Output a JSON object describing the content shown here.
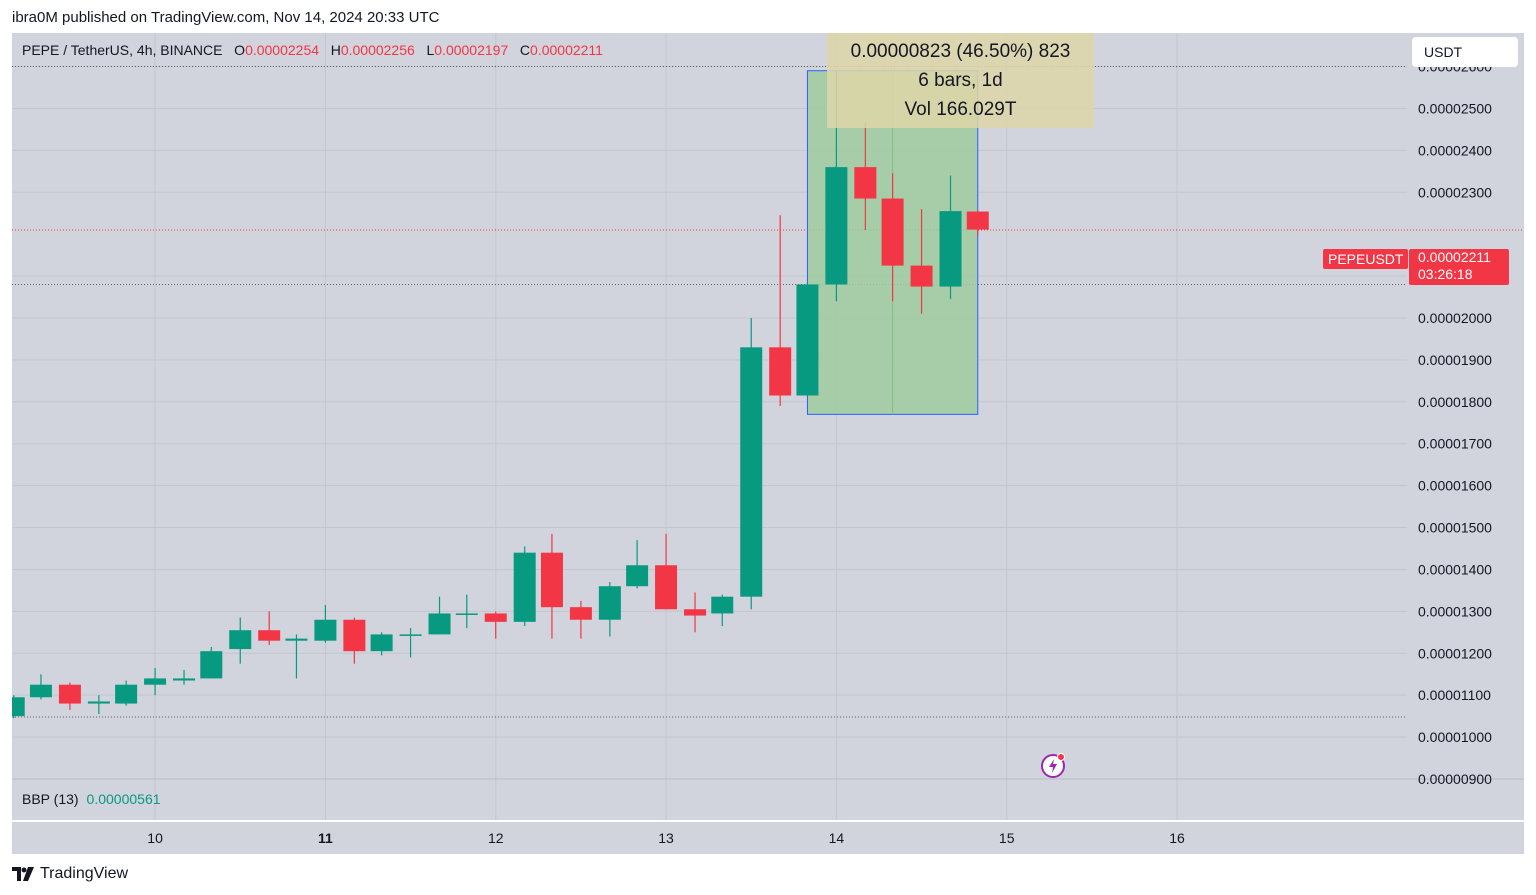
{
  "header": {
    "published_text": "ibra0M published on TradingView.com, Nov 14, 2024 20:33 UTC"
  },
  "legend": {
    "symbol": "PEPE / TetherUS, 4h, BINANCE",
    "o_label": "O",
    "o_value": "0.00002254",
    "h_label": "H",
    "h_value": "0.00002256",
    "l_label": "L",
    "l_value": "0.00002197",
    "c_label": "C",
    "c_value": "0.00002211"
  },
  "currency_button": "USDT",
  "measure": {
    "line1": "0.00000823 (46.50%) 823",
    "line2": "6 bars, 1d",
    "line3": "Vol 166.029T"
  },
  "last_price": {
    "symbol": "PEPEUSDT",
    "price": "0.00002211",
    "countdown": "03:26:18"
  },
  "indicator": {
    "label": "BBP (13)",
    "value": "0.00000561"
  },
  "brand": "TradingView",
  "colors": {
    "up": "#089981",
    "down": "#f23645",
    "background": "#d1d4dc",
    "measure_fill": "#9fcb9f",
    "measure_border": "#2962ff"
  },
  "chart_data": {
    "type": "candlestick",
    "y_tick_labels": [
      "0.00002600",
      "0.00002500",
      "0.00002400",
      "0.00002300",
      "0.00002100",
      "0.00002000",
      "0.00001900",
      "0.00001800",
      "0.00001700",
      "0.00001600",
      "0.00001500",
      "0.00001400",
      "0.00001300",
      "0.00001200",
      "0.00001100",
      "0.00001000",
      "0.00000900"
    ],
    "y_ticks": [
      2.6e-05,
      2.5e-05,
      2.4e-05,
      2.3e-05,
      2.1e-05,
      2e-05,
      1.9e-05,
      1.8e-05,
      1.7e-05,
      1.6e-05,
      1.5e-05,
      1.4e-05,
      1.3e-05,
      1.2e-05,
      1.1e-05,
      1e-05,
      9e-06
    ],
    "ylim": [
      9e-06,
      2.68e-05
    ],
    "x_tick_labels": [
      "10",
      "11",
      "12",
      "13",
      "14",
      "15",
      "16"
    ],
    "x_ticks": [
      10,
      11,
      12,
      13,
      14,
      15,
      16
    ],
    "xlim": [
      9.16,
      17.35
    ],
    "bold_x_tick": "11",
    "horizontal_lines": [
      2.6e-05,
      2.21e-05,
      2.08e-05,
      1.048e-05
    ],
    "measure_range": {
      "x": [
        13.83,
        14.83
      ],
      "y": [
        1.77e-05,
        2.59e-05
      ]
    },
    "candles": [
      {
        "x": 9.17,
        "o": 1.05e-05,
        "h": 1.1e-05,
        "l": 1.045e-05,
        "c": 1.095e-05
      },
      {
        "x": 9.33,
        "o": 1.095e-05,
        "h": 1.15e-05,
        "l": 1.09e-05,
        "c": 1.125e-05
      },
      {
        "x": 9.5,
        "o": 1.125e-05,
        "h": 1.13e-05,
        "l": 1.065e-05,
        "c": 1.08e-05
      },
      {
        "x": 9.67,
        "o": 1.08e-05,
        "h": 1.1e-05,
        "l": 1.055e-05,
        "c": 1.085e-05
      },
      {
        "x": 9.83,
        "o": 1.08e-05,
        "h": 1.135e-05,
        "l": 1.075e-05,
        "c": 1.125e-05
      },
      {
        "x": 10.0,
        "o": 1.125e-05,
        "h": 1.165e-05,
        "l": 1.1e-05,
        "c": 1.14e-05
      },
      {
        "x": 10.17,
        "o": 1.135e-05,
        "h": 1.16e-05,
        "l": 1.125e-05,
        "c": 1.14e-05
      },
      {
        "x": 10.33,
        "o": 1.14e-05,
        "h": 1.215e-05,
        "l": 1.14e-05,
        "c": 1.205e-05
      },
      {
        "x": 10.5,
        "o": 1.21e-05,
        "h": 1.285e-05,
        "l": 1.175e-05,
        "c": 1.255e-05
      },
      {
        "x": 10.67,
        "o": 1.255e-05,
        "h": 1.3e-05,
        "l": 1.22e-05,
        "c": 1.23e-05
      },
      {
        "x": 10.83,
        "o": 1.23e-05,
        "h": 1.245e-05,
        "l": 1.14e-05,
        "c": 1.235e-05
      },
      {
        "x": 11.0,
        "o": 1.23e-05,
        "h": 1.315e-05,
        "l": 1.225e-05,
        "c": 1.28e-05
      },
      {
        "x": 11.17,
        "o": 1.28e-05,
        "h": 1.285e-05,
        "l": 1.175e-05,
        "c": 1.205e-05
      },
      {
        "x": 11.33,
        "o": 1.205e-05,
        "h": 1.25e-05,
        "l": 1.195e-05,
        "c": 1.245e-05
      },
      {
        "x": 11.5,
        "o": 1.245e-05,
        "h": 1.26e-05,
        "l": 1.19e-05,
        "c": 1.245e-05
      },
      {
        "x": 11.67,
        "o": 1.245e-05,
        "h": 1.335e-05,
        "l": 1.245e-05,
        "c": 1.295e-05
      },
      {
        "x": 11.83,
        "o": 1.295e-05,
        "h": 1.34e-05,
        "l": 1.26e-05,
        "c": 1.295e-05
      },
      {
        "x": 12.0,
        "o": 1.295e-05,
        "h": 1.3e-05,
        "l": 1.235e-05,
        "c": 1.275e-05
      },
      {
        "x": 12.17,
        "o": 1.275e-05,
        "h": 1.455e-05,
        "l": 1.265e-05,
        "c": 1.44e-05
      },
      {
        "x": 12.33,
        "o": 1.44e-05,
        "h": 1.485e-05,
        "l": 1.235e-05,
        "c": 1.31e-05
      },
      {
        "x": 12.5,
        "o": 1.31e-05,
        "h": 1.325e-05,
        "l": 1.235e-05,
        "c": 1.28e-05
      },
      {
        "x": 12.67,
        "o": 1.28e-05,
        "h": 1.37e-05,
        "l": 1.24e-05,
        "c": 1.36e-05
      },
      {
        "x": 12.83,
        "o": 1.36e-05,
        "h": 1.47e-05,
        "l": 1.355e-05,
        "c": 1.41e-05
      },
      {
        "x": 13.0,
        "o": 1.41e-05,
        "h": 1.485e-05,
        "l": 1.305e-05,
        "c": 1.305e-05
      },
      {
        "x": 13.17,
        "o": 1.305e-05,
        "h": 1.345e-05,
        "l": 1.25e-05,
        "c": 1.29e-05
      },
      {
        "x": 13.33,
        "o": 1.295e-05,
        "h": 1.34e-05,
        "l": 1.265e-05,
        "c": 1.335e-05
      },
      {
        "x": 13.5,
        "o": 1.335e-05,
        "h": 2e-05,
        "l": 1.305e-05,
        "c": 1.93e-05
      },
      {
        "x": 13.67,
        "o": 1.93e-05,
        "h": 2.245e-05,
        "l": 1.79e-05,
        "c": 1.815e-05
      },
      {
        "x": 13.83,
        "o": 1.815e-05,
        "h": 2.085e-05,
        "l": 1.815e-05,
        "c": 2.08e-05
      },
      {
        "x": 14.0,
        "o": 2.08e-05,
        "h": 2.59e-05,
        "l": 2.04e-05,
        "c": 2.36e-05
      },
      {
        "x": 14.17,
        "o": 2.36e-05,
        "h": 2.465e-05,
        "l": 2.21e-05,
        "c": 2.285e-05
      },
      {
        "x": 14.33,
        "o": 2.285e-05,
        "h": 2.345e-05,
        "l": 2.04e-05,
        "c": 2.125e-05
      },
      {
        "x": 14.5,
        "o": 2.125e-05,
        "h": 2.26e-05,
        "l": 2.01e-05,
        "c": 2.075e-05
      },
      {
        "x": 14.67,
        "o": 2.075e-05,
        "h": 2.34e-05,
        "l": 2.045e-05,
        "c": 2.255e-05
      },
      {
        "x": 14.83,
        "o": 2.254e-05,
        "h": 2.256e-05,
        "l": 2.197e-05,
        "c": 2.211e-05
      }
    ]
  }
}
